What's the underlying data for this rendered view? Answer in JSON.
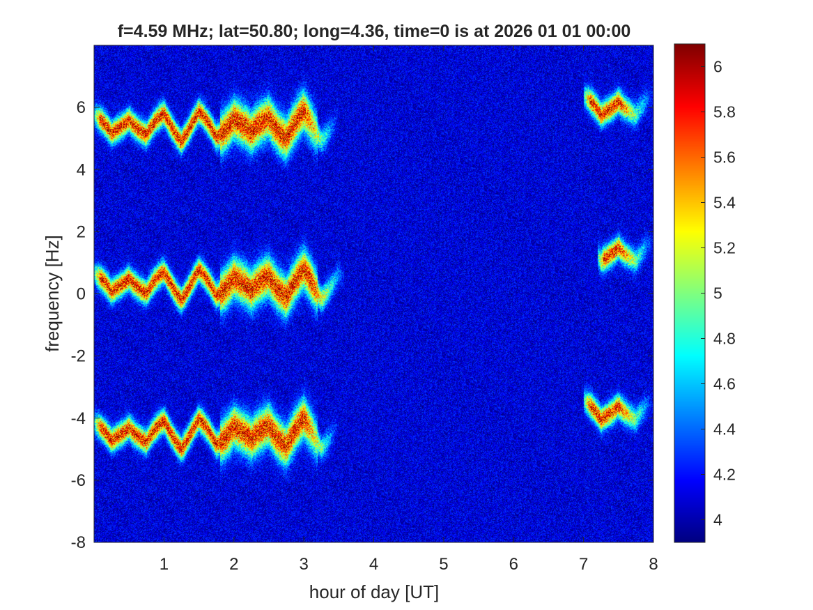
{
  "chart_data": {
    "type": "heatmap",
    "title": "f=4.59 MHz;  lat=50.80; long=4.36, time=0 is at 2026 01 01 00:00",
    "xlabel": "hour of day [UT]",
    "ylabel": "frequency [Hz]",
    "xlim": [
      0,
      8
    ],
    "ylim": [
      -8,
      8
    ],
    "x_ticks": [
      1,
      2,
      3,
      4,
      5,
      6,
      7,
      8
    ],
    "y_ticks": [
      -8,
      -6,
      -4,
      -2,
      0,
      2,
      4,
      6
    ],
    "colormap": "jet",
    "clim": [
      3.9,
      6.1
    ],
    "colorbar_ticks": [
      4,
      4.2,
      4.4,
      4.6,
      4.8,
      5,
      5.2,
      5.4,
      5.6,
      5.8,
      6
    ],
    "background_level": 4.1,
    "bands": [
      {
        "t_start": 0.0,
        "t_end": 3.5,
        "center_freq": 5.4,
        "peak": 6.1
      },
      {
        "t_start": 0.0,
        "t_end": 3.6,
        "center_freq": 0.3,
        "peak": 6.1
      },
      {
        "t_start": 0.0,
        "t_end": 3.5,
        "center_freq": -4.5,
        "peak": 6.1
      },
      {
        "t_start": 7.0,
        "t_end": 8.0,
        "center_freq": 6.0,
        "peak": 6.1
      },
      {
        "t_start": 7.2,
        "t_end": 8.0,
        "center_freq": 1.3,
        "peak": 6.1
      },
      {
        "t_start": 7.0,
        "t_end": 8.0,
        "center_freq": -3.8,
        "peak": 6.1
      }
    ],
    "grid": false,
    "legend": "none"
  }
}
